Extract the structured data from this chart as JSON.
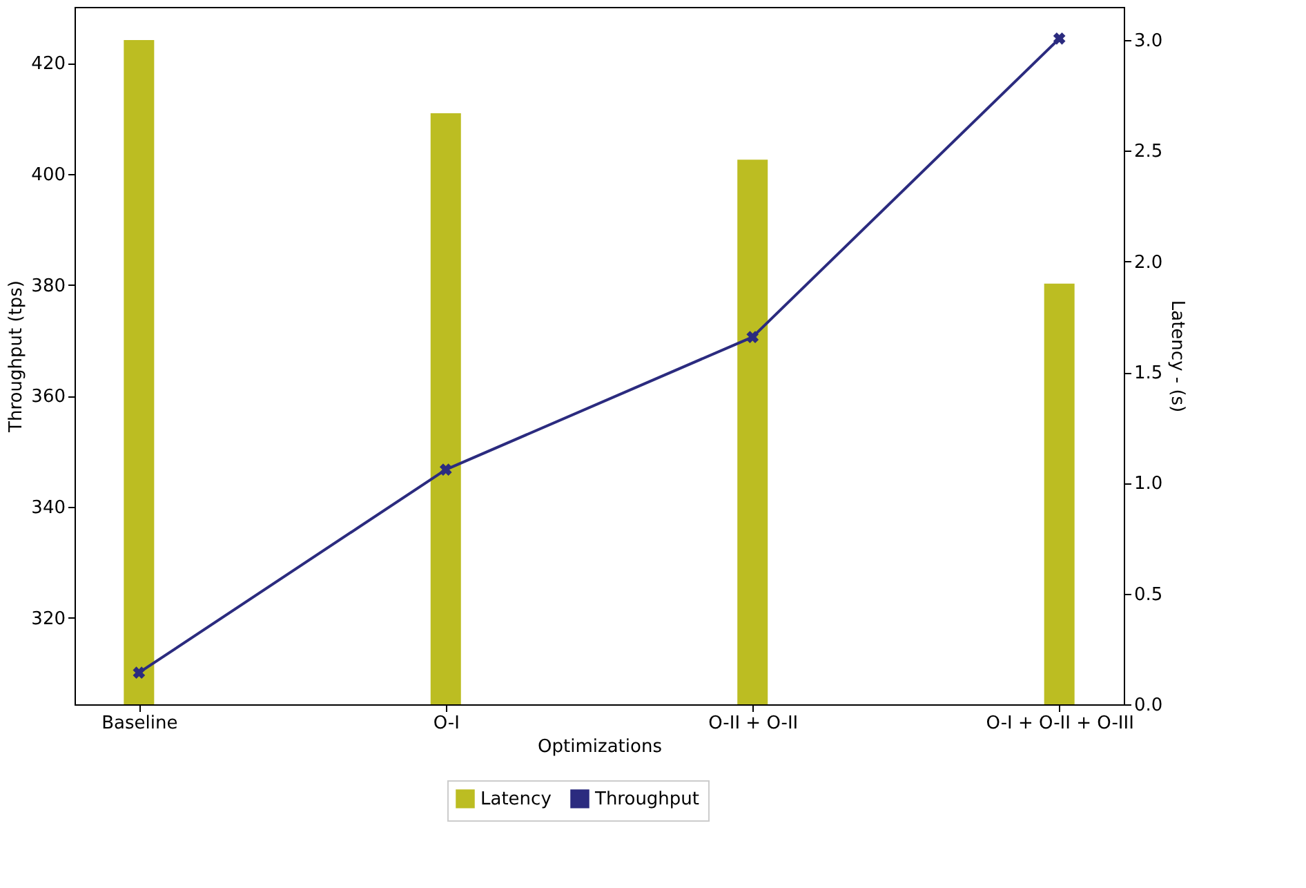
{
  "chart_data": {
    "type": "bar",
    "xlabel": "Optimizations",
    "ylabel": "Throughput (tps)",
    "y2label": "Latency - (s)",
    "categories": [
      "Baseline",
      "O-I",
      "O-II + O-II",
      "O-I + O-II + O-III"
    ],
    "series": [
      {
        "name": "Latency",
        "axis": "y2",
        "color": "#bcbd22",
        "values": [
          3.0,
          2.67,
          2.46,
          1.9
        ]
      },
      {
        "name": "Throughput",
        "type": "line",
        "axis": "y",
        "color": "#2b2b7f",
        "marker": "cross",
        "values": [
          310.1,
          346.7,
          370.6,
          424.4
        ]
      }
    ],
    "ylim": [
      304.4,
      430.1
    ],
    "yticks": [
      320,
      340,
      360,
      380,
      400,
      420
    ],
    "y2lim": [
      0,
      3.15
    ],
    "y2ticks": [
      {
        "value": 0,
        "label": "0.0"
      },
      {
        "value": 0.5,
        "label": "0.5"
      },
      {
        "value": 1,
        "label": "1.0"
      },
      {
        "value": 1.5,
        "label": "1.5"
      },
      {
        "value": 2,
        "label": "2.0"
      },
      {
        "value": 2.5,
        "label": "2.5"
      },
      {
        "value": 3,
        "label": "3.0"
      }
    ],
    "grid": false,
    "legend": "bottom"
  }
}
